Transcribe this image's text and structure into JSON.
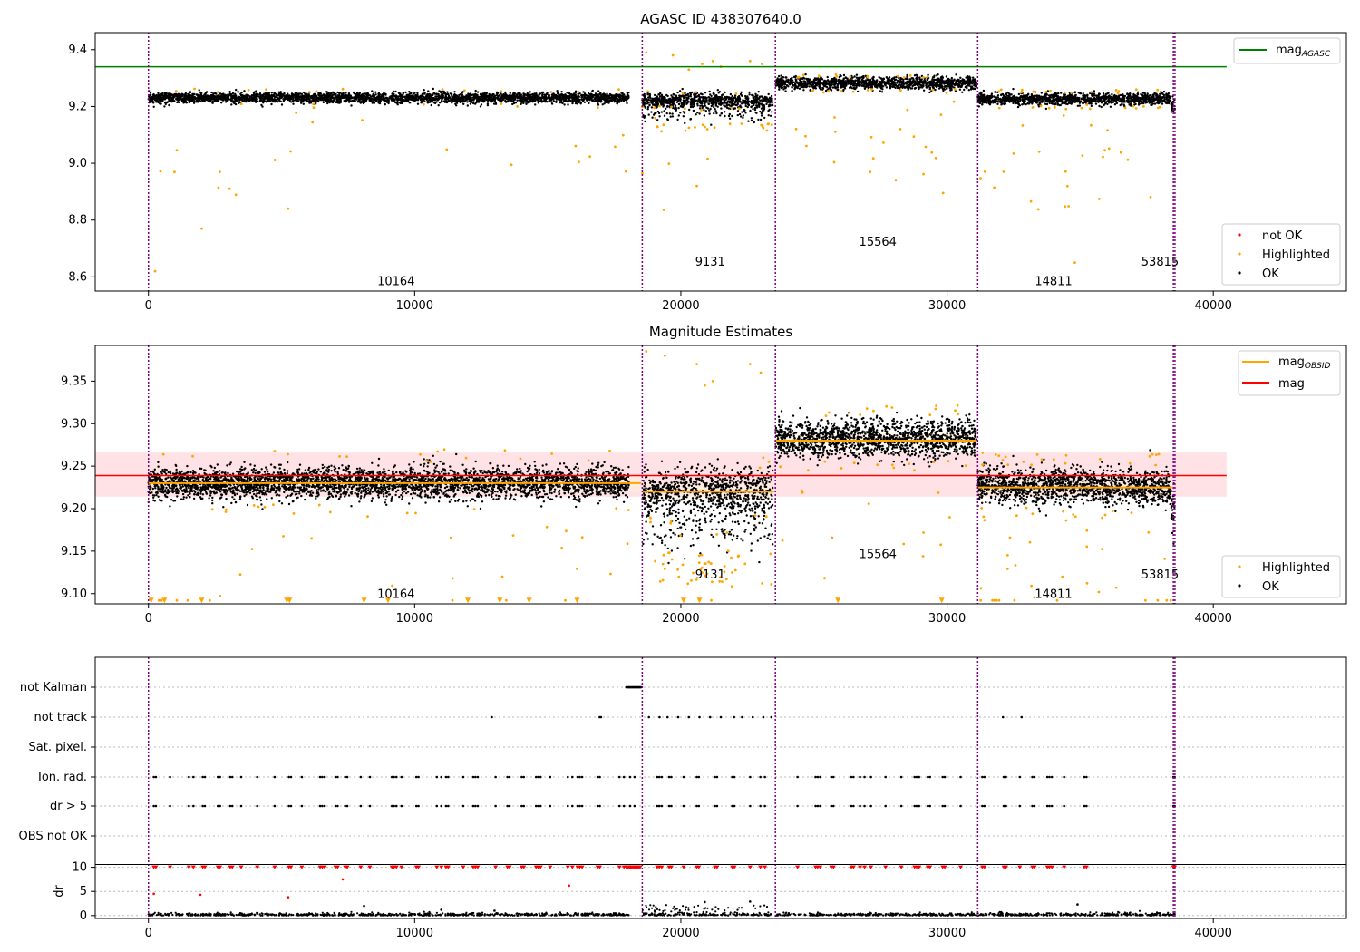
{
  "chart_data": [
    {
      "type": "scatter",
      "title": "AGASC ID 438307640.0",
      "xlim": [
        -2000,
        45000
      ],
      "ylim": [
        8.55,
        9.46
      ],
      "xticks": [
        0,
        10000,
        20000,
        30000,
        40000
      ],
      "yticks": [
        8.6,
        8.8,
        9.0,
        9.2,
        9.4
      ],
      "ytick_labels": [
        "8.6",
        "8.8",
        "9.0",
        "9.2",
        "9.4"
      ],
      "mag_agasc": 9.34,
      "legend_upper": [
        "mag$_{AGASC}$"
      ],
      "legend_upper_parts": {
        "main": "mag",
        "sub": "AGASC"
      },
      "legend_lower": [
        "not OK",
        "Highlighted",
        "OK"
      ],
      "obsid_labels": [
        {
          "text": "10164",
          "x": 9300,
          "y": 8.57
        },
        {
          "text": "9131",
          "x": 21100,
          "y": 8.64
        },
        {
          "text": "15564",
          "x": 27400,
          "y": 8.71
        },
        {
          "text": "14811",
          "x": 34000,
          "y": 8.57
        },
        {
          "text": "53815",
          "x": 38000,
          "y": 8.64
        }
      ]
    },
    {
      "type": "scatter",
      "title": "Magnitude Estimates",
      "xlim": [
        -2000,
        45000
      ],
      "ylim": [
        9.088,
        9.392
      ],
      "xticks": [
        0,
        10000,
        20000,
        30000,
        40000
      ],
      "yticks": [
        9.1,
        9.15,
        9.2,
        9.25,
        9.3,
        9.35
      ],
      "ytick_labels": [
        "9.10",
        "9.15",
        "9.20",
        "9.25",
        "9.30",
        "9.35"
      ],
      "mag_mean": 9.24,
      "mag_band": [
        9.214,
        9.266
      ],
      "mag_obsid": [
        9.23,
        9.22,
        9.28,
        9.225,
        9.2
      ],
      "legend_upper": [
        "mag$_{OBSID}$",
        "mag"
      ],
      "legend_upper_parts": {
        "main": "mag",
        "sub": "OBSID"
      },
      "legend_lower": [
        "Highlighted",
        "OK"
      ],
      "obsid_labels": [
        {
          "text": "10164",
          "x": 9300,
          "y": 9.095
        },
        {
          "text": "9131",
          "x": 21100,
          "y": 9.118
        },
        {
          "text": "15564",
          "x": 27400,
          "y": 9.142
        },
        {
          "text": "14811",
          "x": 34000,
          "y": 9.095
        },
        {
          "text": "53815",
          "x": 38000,
          "y": 9.118
        }
      ]
    },
    {
      "type": "scatter",
      "title": "",
      "xlim": [
        -2000,
        45000
      ],
      "xticks": [
        0,
        10000,
        20000,
        30000,
        40000
      ],
      "flag_rows": [
        "not Kalman",
        "not track",
        "Sat. pixel.",
        "Ion. rad.",
        "dr > 5",
        "OBS not OK"
      ],
      "ylabel": "dr",
      "dr_ylim": [
        -0.6,
        10.3
      ],
      "dr_yticks": [
        0,
        5,
        10
      ]
    }
  ],
  "obsid_boundaries": [
    0,
    18550,
    23550,
    31150,
    38500
  ],
  "colors": {
    "ok": "#000000",
    "highlighted": "#ffa500",
    "not_ok": "#ff0000",
    "agasc_line": "#008000",
    "mag_line": "#ff0000",
    "mag_obsid_line": "#ffa500",
    "boundary": "#800080",
    "band": "#ffdde0"
  },
  "axis_tick_labels": [
    "0",
    "10000",
    "20000",
    "30000",
    "40000"
  ]
}
